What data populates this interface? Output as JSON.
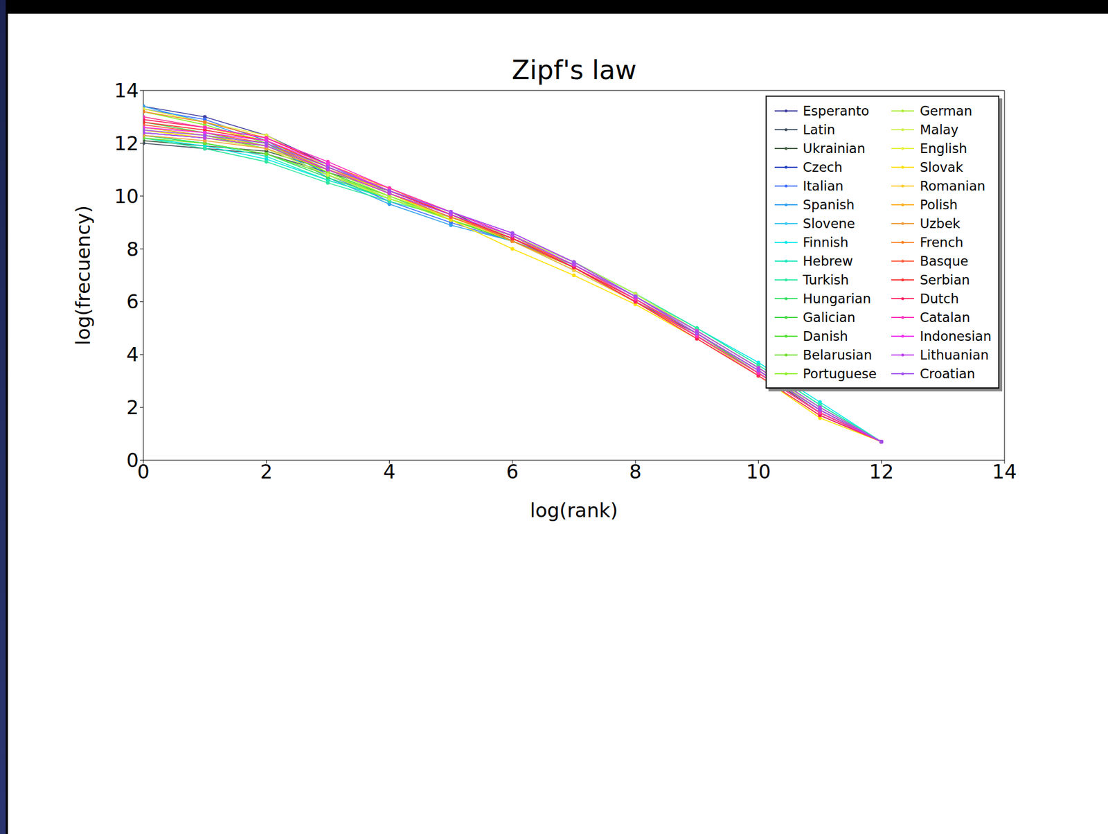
{
  "chart_data": {
    "type": "line",
    "title": "Zipf's law",
    "x_label": "log(rank)",
    "y_label": "log(frecuency)",
    "x": [
      0,
      1,
      2,
      3,
      4,
      5,
      6,
      7,
      8,
      9,
      10,
      11,
      12
    ],
    "xlim": [
      0,
      14
    ],
    "xticks": [
      0,
      2,
      4,
      6,
      8,
      10,
      12,
      14
    ],
    "ylim": [
      0,
      14
    ],
    "yticks": [
      0,
      2,
      4,
      6,
      8,
      10,
      12,
      14
    ],
    "grid": false,
    "legend": "upper right",
    "marker": "point",
    "series": [
      {
        "name": "Esperanto",
        "color": "#4040a0",
        "values": [
          13.4,
          13.0,
          12.3,
          11.2,
          10.1,
          9.2,
          8.4,
          7.3,
          6.0,
          4.7,
          3.2,
          1.7,
          0.7
        ]
      },
      {
        "name": "Latin",
        "color": "#405060",
        "values": [
          12.0,
          11.8,
          11.6,
          10.9,
          10.2,
          9.4,
          8.3,
          7.2,
          6.0,
          4.7,
          3.3,
          1.8,
          0.7
        ]
      },
      {
        "name": "Ukrainian",
        "color": "#406040",
        "values": [
          12.1,
          11.9,
          11.7,
          11.0,
          10.1,
          9.3,
          8.4,
          7.3,
          6.0,
          4.8,
          3.4,
          1.8,
          0.7
        ]
      },
      {
        "name": "Czech",
        "color": "#2040c0",
        "values": [
          12.4,
          12.2,
          11.9,
          11.0,
          10.2,
          9.4,
          8.5,
          7.3,
          6.0,
          4.8,
          3.4,
          1.9,
          0.7
        ]
      },
      {
        "name": "Italian",
        "color": "#4070ff",
        "values": [
          13.3,
          12.9,
          12.1,
          10.8,
          9.8,
          9.0,
          8.3,
          7.4,
          6.2,
          4.8,
          3.4,
          1.9,
          0.7
        ]
      },
      {
        "name": "Spanish",
        "color": "#30a0f0",
        "values": [
          13.4,
          12.8,
          12.0,
          10.7,
          9.7,
          8.9,
          8.3,
          7.4,
          6.2,
          4.9,
          3.5,
          2.0,
          0.7
        ]
      },
      {
        "name": "Slovene",
        "color": "#40c8f0",
        "values": [
          12.4,
          12.2,
          11.9,
          11.2,
          10.1,
          9.2,
          8.4,
          7.4,
          6.2,
          4.9,
          3.5,
          2.0,
          0.7
        ]
      },
      {
        "name": "Finnish",
        "color": "#00e8e8",
        "values": [
          12.2,
          11.9,
          11.4,
          10.6,
          9.9,
          9.2,
          8.5,
          7.5,
          6.3,
          5.0,
          3.7,
          2.2,
          0.7
        ]
      },
      {
        "name": "Hebrew",
        "color": "#20e8c0",
        "values": [
          12.3,
          12.0,
          11.5,
          10.6,
          9.9,
          9.2,
          8.5,
          7.5,
          6.3,
          5.0,
          3.6,
          2.1,
          0.7
        ]
      },
      {
        "name": "Turkish",
        "color": "#30e8a0",
        "values": [
          12.2,
          11.8,
          11.3,
          10.5,
          9.8,
          9.2,
          8.5,
          7.5,
          6.3,
          5.0,
          3.6,
          2.1,
          0.7
        ]
      },
      {
        "name": "Hungarian",
        "color": "#30e060",
        "values": [
          12.3,
          12.0,
          11.6,
          10.7,
          9.9,
          9.2,
          8.5,
          7.5,
          6.3,
          4.9,
          3.5,
          2.0,
          0.7
        ]
      },
      {
        "name": "Galician",
        "color": "#40d840",
        "values": [
          12.8,
          12.4,
          11.9,
          10.9,
          10.0,
          9.1,
          8.3,
          7.3,
          6.1,
          4.8,
          3.3,
          1.8,
          0.7
        ]
      },
      {
        "name": "Danish",
        "color": "#50e030",
        "values": [
          12.6,
          12.3,
          11.8,
          10.8,
          9.9,
          9.1,
          8.3,
          7.3,
          6.1,
          4.8,
          3.3,
          1.8,
          0.7
        ]
      },
      {
        "name": "Belarusian",
        "color": "#70e030",
        "values": [
          12.2,
          12.0,
          11.6,
          10.8,
          10.0,
          9.2,
          8.4,
          7.4,
          6.2,
          4.9,
          3.5,
          2.0,
          0.7
        ]
      },
      {
        "name": "Portuguese",
        "color": "#90f030",
        "values": [
          13.2,
          12.7,
          12.0,
          10.9,
          9.9,
          9.1,
          8.4,
          7.4,
          6.2,
          4.8,
          3.4,
          1.9,
          0.7
        ]
      },
      {
        "name": "German",
        "color": "#b0f040",
        "values": [
          13.0,
          12.6,
          12.1,
          11.0,
          10.0,
          9.2,
          8.5,
          7.5,
          6.2,
          4.9,
          3.5,
          1.9,
          0.7
        ]
      },
      {
        "name": "Malay",
        "color": "#d0f050",
        "values": [
          12.5,
          12.2,
          11.8,
          10.8,
          9.9,
          9.2,
          8.5,
          7.5,
          6.3,
          4.9,
          3.5,
          2.0,
          0.7
        ]
      },
      {
        "name": "English",
        "color": "#e8f040",
        "values": [
          13.3,
          12.8,
          12.3,
          11.1,
          10.1,
          9.3,
          8.4,
          7.3,
          6.1,
          4.7,
          3.2,
          1.7,
          null
        ]
      },
      {
        "name": "Slovak",
        "color": "#ffe000",
        "values": [
          12.5,
          12.2,
          11.9,
          11.0,
          10.1,
          9.1,
          8.0,
          7.0,
          5.9,
          4.6,
          3.2,
          1.6,
          0.7
        ]
      },
      {
        "name": "Romanian",
        "color": "#ffcc30",
        "values": [
          13.0,
          12.6,
          12.1,
          11.1,
          10.1,
          9.2,
          8.3,
          7.2,
          6.0,
          4.6,
          3.2,
          1.7,
          null
        ]
      },
      {
        "name": "Polish",
        "color": "#ffb020",
        "values": [
          12.6,
          12.3,
          11.9,
          11.0,
          10.2,
          9.3,
          8.4,
          7.3,
          6.0,
          4.7,
          3.3,
          1.8,
          0.7
        ]
      },
      {
        "name": "Uzbek",
        "color": "#f0a040",
        "values": [
          12.3,
          12.1,
          11.8,
          11.0,
          10.3,
          9.4,
          8.5,
          7.3,
          6.0,
          4.7,
          3.3,
          1.8,
          0.7
        ]
      },
      {
        "name": "French",
        "color": "#ff8020",
        "values": [
          13.2,
          12.8,
          12.2,
          11.2,
          10.3,
          9.3,
          8.3,
          7.3,
          6.0,
          4.7,
          3.3,
          1.8,
          0.7
        ]
      },
      {
        "name": "Basque",
        "color": "#ff6040",
        "values": [
          12.7,
          12.4,
          12.0,
          11.0,
          10.1,
          9.2,
          8.4,
          7.4,
          6.1,
          4.8,
          3.4,
          1.9,
          0.7
        ]
      },
      {
        "name": "Serbian",
        "color": "#ff3030",
        "values": [
          12.8,
          12.5,
          12.1,
          11.1,
          10.2,
          9.3,
          8.4,
          7.3,
          6.1,
          4.7,
          3.3,
          1.8,
          0.7
        ]
      },
      {
        "name": "Dutch",
        "color": "#ff2060",
        "values": [
          12.9,
          12.6,
          12.2,
          11.2,
          10.2,
          9.3,
          8.4,
          7.3,
          6.0,
          4.6,
          3.2,
          1.7,
          0.7
        ]
      },
      {
        "name": "Catalan",
        "color": "#ff30c0",
        "values": [
          13.0,
          12.6,
          12.2,
          11.3,
          10.3,
          9.4,
          8.5,
          7.4,
          6.1,
          4.7,
          3.3,
          1.8,
          0.7
        ]
      },
      {
        "name": "Indonesian",
        "color": "#f030f0",
        "values": [
          12.6,
          12.4,
          12.1,
          11.2,
          10.2,
          9.4,
          8.6,
          7.5,
          6.2,
          4.8,
          3.4,
          1.9,
          0.7
        ]
      },
      {
        "name": "Lithuanian",
        "color": "#c040f0",
        "values": [
          12.4,
          12.2,
          11.9,
          11.0,
          10.1,
          9.3,
          8.5,
          7.4,
          6.2,
          4.9,
          3.5,
          2.0,
          0.7
        ]
      },
      {
        "name": "Croatian",
        "color": "#a050f0",
        "values": [
          12.5,
          12.3,
          12.0,
          11.1,
          10.2,
          9.4,
          8.6,
          7.5,
          6.2,
          4.8,
          3.4,
          1.9,
          0.7
        ]
      }
    ]
  }
}
